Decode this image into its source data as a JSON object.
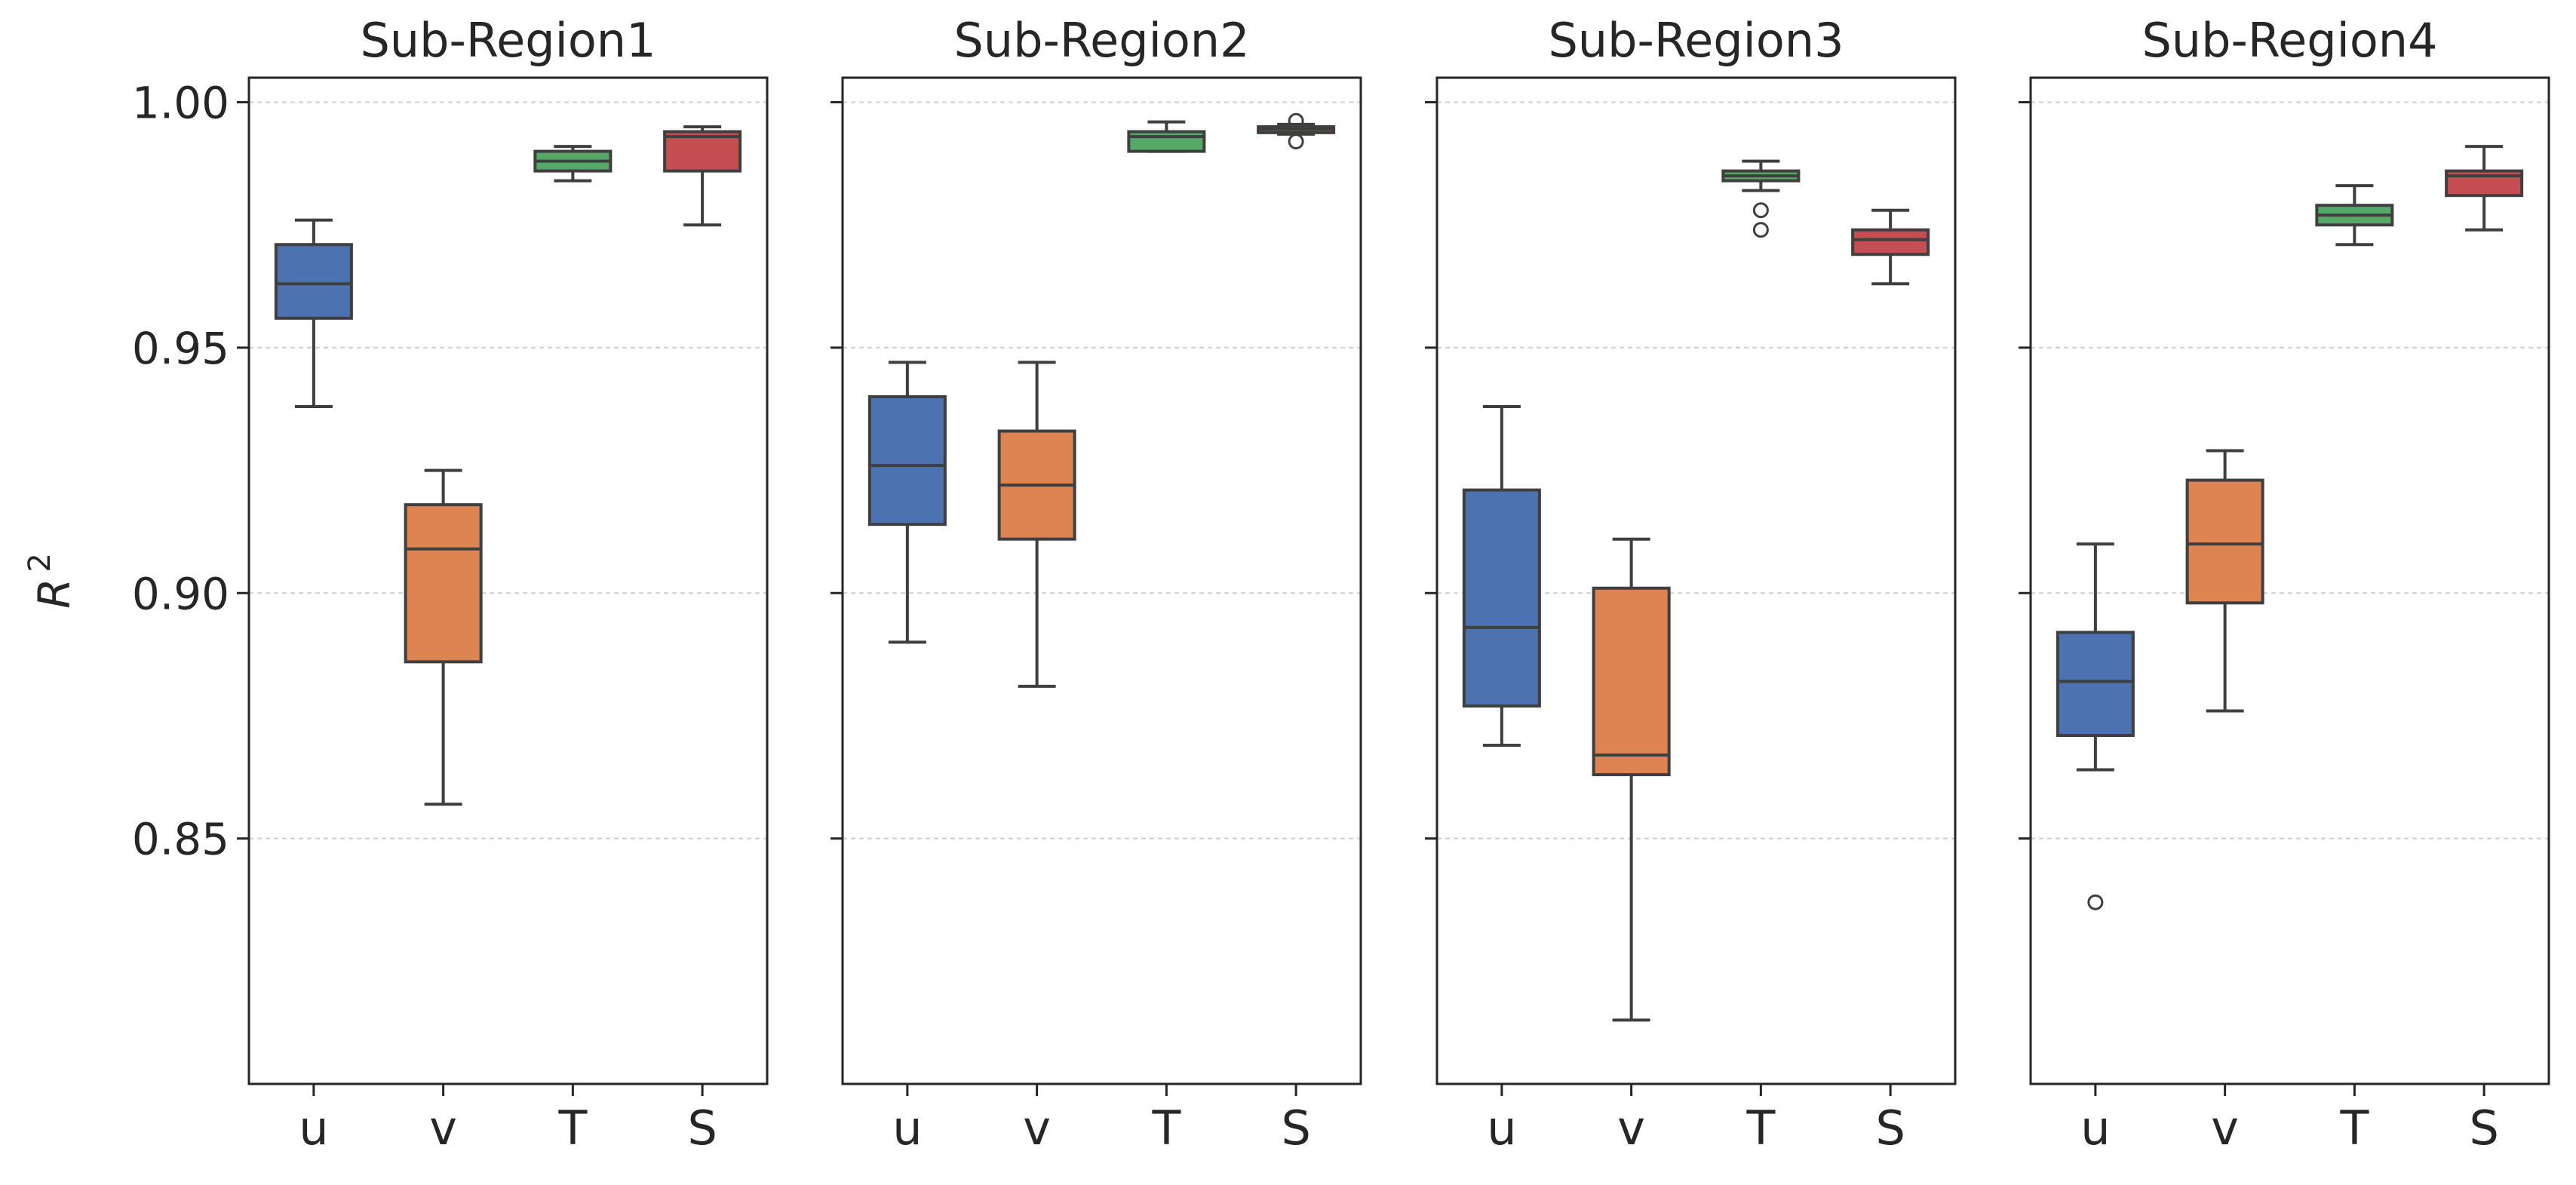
{
  "chart_data": {
    "type": "box",
    "ylabel": "R",
    "ylabel_sup": "2",
    "ylim": [
      0.8,
      1.005
    ],
    "yticks": [
      0.85,
      0.9,
      0.95,
      1.0
    ],
    "ytick_labels": [
      "0.85",
      "0.90",
      "0.95",
      "1.00"
    ],
    "grid": "horizontal-dashed",
    "categories": [
      "u",
      "v",
      "T",
      "S"
    ],
    "colors": {
      "u": "#4c72b0",
      "v": "#dd8452",
      "T": "#55a868",
      "S": "#c44e52"
    },
    "panels": [
      {
        "title": "Sub-Region1",
        "boxes": [
          {
            "cat": "u",
            "whislo": 0.938,
            "q1": 0.956,
            "med": 0.963,
            "q3": 0.971,
            "whishi": 0.976,
            "fliers": []
          },
          {
            "cat": "v",
            "whislo": 0.857,
            "q1": 0.886,
            "med": 0.909,
            "q3": 0.918,
            "whishi": 0.925,
            "fliers": []
          },
          {
            "cat": "T",
            "whislo": 0.984,
            "q1": 0.986,
            "med": 0.988,
            "q3": 0.99,
            "whishi": 0.991,
            "fliers": []
          },
          {
            "cat": "S",
            "whislo": 0.975,
            "q1": 0.986,
            "med": 0.993,
            "q3": 0.994,
            "whishi": 0.995,
            "fliers": []
          }
        ]
      },
      {
        "title": "Sub-Region2",
        "boxes": [
          {
            "cat": "u",
            "whislo": 0.89,
            "q1": 0.914,
            "med": 0.926,
            "q3": 0.94,
            "whishi": 0.947,
            "fliers": []
          },
          {
            "cat": "v",
            "whislo": 0.881,
            "q1": 0.911,
            "med": 0.922,
            "q3": 0.933,
            "whishi": 0.947,
            "fliers": []
          },
          {
            "cat": "T",
            "whislo": 0.99,
            "q1": 0.99,
            "med": 0.993,
            "q3": 0.994,
            "whishi": 0.996,
            "fliers": []
          },
          {
            "cat": "S",
            "whislo": 0.9935,
            "q1": 0.9938,
            "med": 0.9945,
            "q3": 0.995,
            "whishi": 0.9955,
            "fliers": [
              0.992,
              0.9962
            ]
          }
        ]
      },
      {
        "title": "Sub-Region3",
        "boxes": [
          {
            "cat": "u",
            "whislo": 0.869,
            "q1": 0.877,
            "med": 0.893,
            "q3": 0.921,
            "whishi": 0.938,
            "fliers": []
          },
          {
            "cat": "v",
            "whislo": 0.813,
            "q1": 0.863,
            "med": 0.867,
            "q3": 0.901,
            "whishi": 0.911,
            "fliers": []
          },
          {
            "cat": "T",
            "whislo": 0.982,
            "q1": 0.984,
            "med": 0.985,
            "q3": 0.986,
            "whishi": 0.988,
            "fliers": [
              0.978,
              0.974
            ]
          },
          {
            "cat": "S",
            "whislo": 0.963,
            "q1": 0.969,
            "med": 0.972,
            "q3": 0.974,
            "whishi": 0.978,
            "fliers": []
          }
        ]
      },
      {
        "title": "Sub-Region4",
        "boxes": [
          {
            "cat": "u",
            "whislo": 0.864,
            "q1": 0.871,
            "med": 0.882,
            "q3": 0.892,
            "whishi": 0.91,
            "fliers": [
              0.837
            ]
          },
          {
            "cat": "v",
            "whislo": 0.876,
            "q1": 0.898,
            "med": 0.91,
            "q3": 0.923,
            "whishi": 0.929,
            "fliers": []
          },
          {
            "cat": "T",
            "whislo": 0.971,
            "q1": 0.975,
            "med": 0.977,
            "q3": 0.979,
            "whishi": 0.983,
            "fliers": []
          },
          {
            "cat": "S",
            "whislo": 0.974,
            "q1": 0.981,
            "med": 0.985,
            "q3": 0.986,
            "whishi": 0.991,
            "fliers": []
          }
        ]
      }
    ]
  }
}
